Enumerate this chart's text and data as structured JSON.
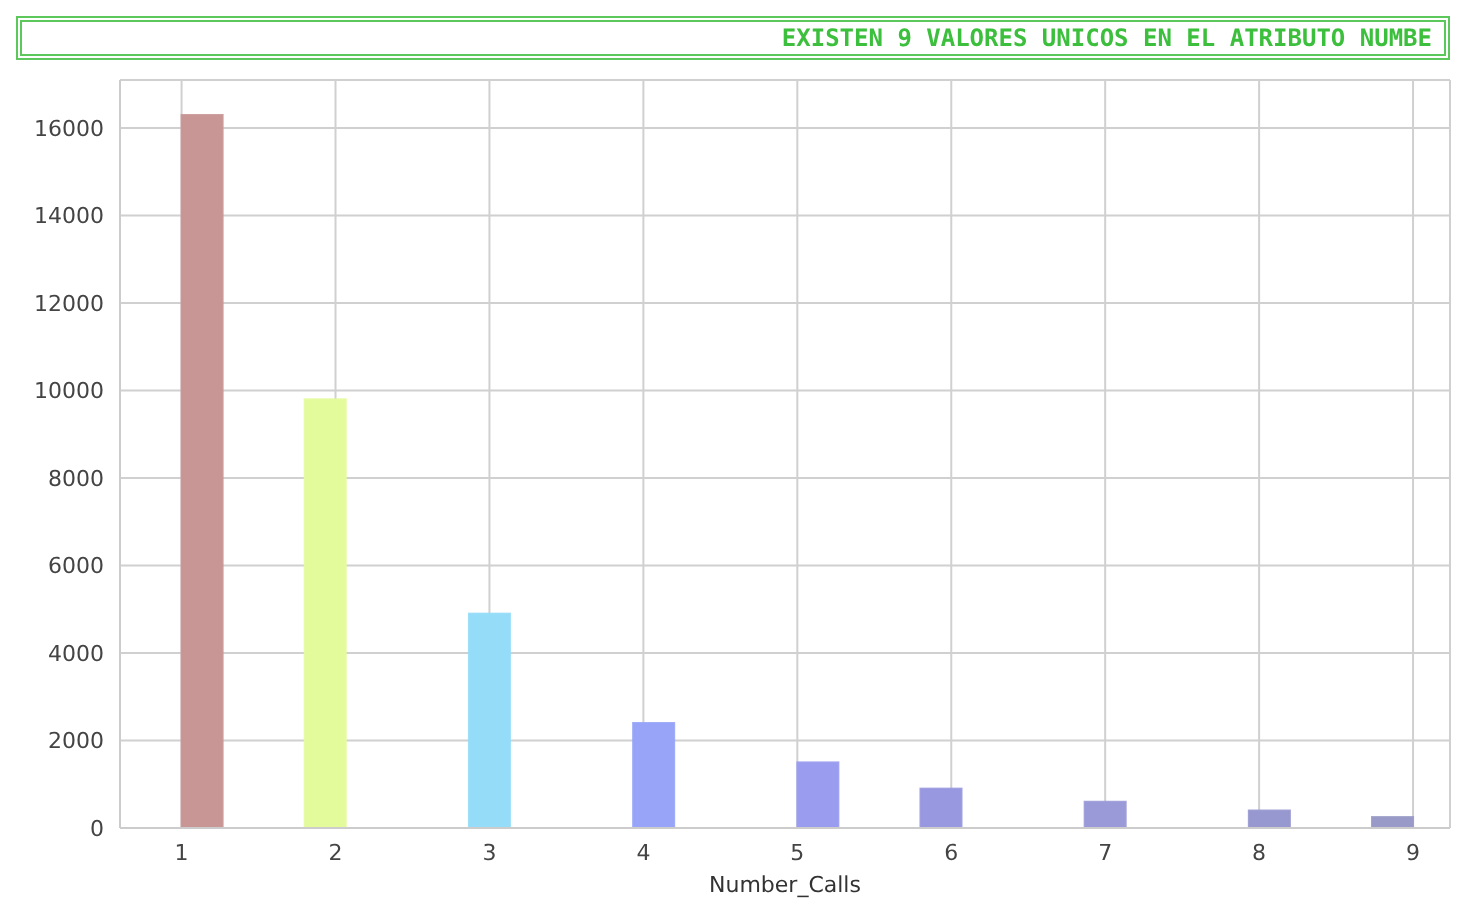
{
  "chart_data": {
    "type": "histogram",
    "title": "EXISTEN 9 VALORES UNICOS EN EL ATRIBUTO NUMBE",
    "xlabel": "Number_Calls",
    "bins": [
      1,
      1.2667,
      1.5333,
      1.8,
      2.0667,
      2.3333,
      2.6,
      2.8667,
      3.1333,
      3.4,
      3.6667,
      3.9333,
      4.2,
      4.4667,
      4.7333,
      5,
      5.2667,
      5.5333,
      5.8,
      6.0667,
      6.3333,
      6.6,
      6.8667,
      7.1333,
      7.4,
      7.6667,
      7.9333,
      8.2,
      8.4667,
      8.7333,
      9
    ],
    "values": [
      16300,
      0,
      0,
      9800,
      0,
      0,
      0,
      4900,
      0,
      0,
      0,
      2400,
      0,
      0,
      0,
      1500,
      0,
      0,
      900,
      0,
      0,
      0,
      600,
      0,
      0,
      0,
      400,
      0,
      0,
      250
    ],
    "colors": [
      "#c99696",
      "#c99696",
      "#c99696",
      "#e4fb9c",
      "#e4fb9c",
      "#e4fb9c",
      "#e4fb9c",
      "#94dcf8",
      "#94dcf8",
      "#94dcf8",
      "#94dcf8",
      "#98a4f8",
      "#98a4f8",
      "#98a4f8",
      "#98a4f8",
      "#9a9cf0",
      "#9a9cf0",
      "#9a9cf0",
      "#9898e0",
      "#9898e0",
      "#9898e0",
      "#9898e0",
      "#9a9ad8",
      "#9a9ad8",
      "#9a9ad8",
      "#9a9ad8",
      "#9898d0",
      "#9898d0",
      "#9898d0",
      "#9a9ac8"
    ],
    "xlim": [
      0.6,
      9.24
    ],
    "xticks": [
      1,
      2,
      3,
      4,
      5,
      6,
      7,
      8,
      9
    ],
    "ylim": [
      0,
      17100
    ],
    "yticks": [
      0,
      2000,
      4000,
      6000,
      8000,
      10000,
      12000,
      14000,
      16000
    ],
    "grid": true
  }
}
